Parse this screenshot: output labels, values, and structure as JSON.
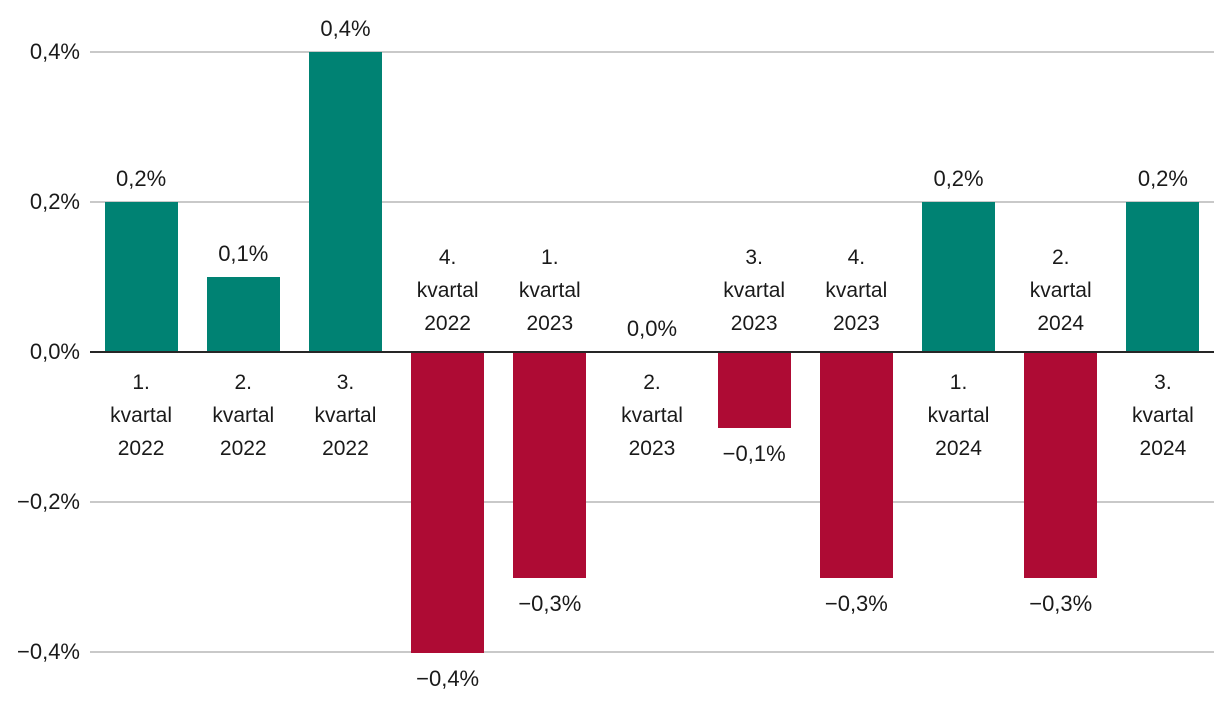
{
  "chart_data": {
    "type": "bar",
    "categories": [
      "1. kvartal 2022",
      "2. kvartal 2022",
      "3. kvartal 2022",
      "4. kvartal 2022",
      "1. kvartal 2023",
      "2. kvartal 2023",
      "3. kvartal 2023",
      "4. kvartal 2023",
      "1. kvartal 2024",
      "2. kvartal 2024",
      "3. kvartal 2024"
    ],
    "category_lines": [
      [
        "1.",
        "kvartal",
        "2022"
      ],
      [
        "2.",
        "kvartal",
        "2022"
      ],
      [
        "3.",
        "kvartal",
        "2022"
      ],
      [
        "4.",
        "kvartal",
        "2022"
      ],
      [
        "1.",
        "kvartal",
        "2023"
      ],
      [
        "2.",
        "kvartal",
        "2023"
      ],
      [
        "3.",
        "kvartal",
        "2023"
      ],
      [
        "4.",
        "kvartal",
        "2023"
      ],
      [
        "1.",
        "kvartal",
        "2024"
      ],
      [
        "2.",
        "kvartal",
        "2024"
      ],
      [
        "3.",
        "kvartal",
        "2024"
      ]
    ],
    "values": [
      0.2,
      0.1,
      0.4,
      -0.4,
      -0.3,
      0.0,
      -0.1,
      -0.3,
      0.2,
      -0.3,
      0.2
    ],
    "value_labels": [
      "0,2%",
      "0,1%",
      "0,4%",
      "−0,4%",
      "−0,3%",
      "0,0%",
      "−0,1%",
      "−0,3%",
      "0,2%",
      "−0,3%",
      "0,2%"
    ],
    "unit": "%",
    "y_ticks": [
      {
        "value": 0.4,
        "label": "0,4%"
      },
      {
        "value": 0.2,
        "label": "0,2%"
      },
      {
        "value": 0.0,
        "label": "0,0%"
      },
      {
        "value": -0.2,
        "label": "−0,2%"
      },
      {
        "value": -0.4,
        "label": "−0,4%"
      }
    ],
    "ylim": [
      -0.47,
      0.47
    ],
    "grid": true,
    "legend": "none",
    "colors": {
      "positive": "#008273",
      "negative": "#AE0B34",
      "gridline": "#c9c9c9",
      "axis": "#262626",
      "text": "#1a1a1a"
    }
  }
}
